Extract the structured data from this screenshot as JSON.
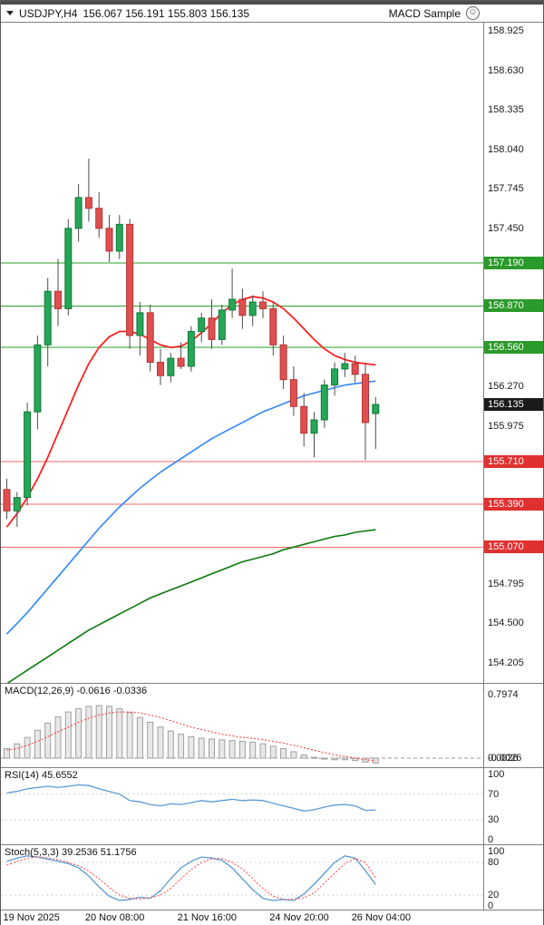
{
  "window": {
    "symbol": "USDJPY,H4",
    "ohlc": "156.067 156.191 155.803 156.135",
    "expert": "MACD Sample"
  },
  "panels": {
    "macd_label": "MACD(12,26,9) -0.0616 -0.0336",
    "rsi_label": "RSI(14) 45.6552",
    "stoch_label": "Stoch(5,3,3) 39.2536 51.1756"
  },
  "colors": {
    "bull": "#26a657",
    "bull_border": "#117a3a",
    "bear": "#de5050",
    "bear_border": "#b63232",
    "wick": "#4d4d4d",
    "ma_fast": "#ff2020",
    "ma_mid": "#2e86ff",
    "ma_slow": "#0a7a0a",
    "res_line": "#2aa12a",
    "res_label_bg": "#2a9a2a",
    "sup_line": "#f26666",
    "sup_label_bg": "#e03030",
    "price_label_bg": "#1a1a1a",
    "macd_hist_fill": "#e8e8e8",
    "macd_hist_stroke": "#9f9f9f",
    "signal": "#ff3030",
    "rsi_line": "#5b9bd5",
    "stoch_k": "#5b9bd5",
    "stoch_d": "#ff4040"
  },
  "chart_data": {
    "type": "candlestick+indicators",
    "main": {
      "type": "candlestick",
      "title": "USDJPY H4",
      "price_range": [
        154.056,
        158.986
      ],
      "x_offset": 6.5,
      "x_step": 11.3,
      "body_w": 7,
      "axis_ticks": [
        "158.925",
        "158.630",
        "158.335",
        "158.040",
        "157.745",
        "157.450",
        "156.270",
        "155.975",
        "154.795",
        "154.500",
        "154.205"
      ],
      "levels": [
        {
          "price": 157.19,
          "kind": "resistance"
        },
        {
          "price": 156.87,
          "kind": "resistance"
        },
        {
          "price": 156.56,
          "kind": "resistance"
        },
        {
          "price": 155.71,
          "kind": "support"
        },
        {
          "price": 155.39,
          "kind": "support"
        },
        {
          "price": 155.07,
          "kind": "support"
        }
      ],
      "last_price": 156.135,
      "time_ticks": [
        {
          "i": 0,
          "t": "19 Nov 2025"
        },
        {
          "i": 8,
          "t": "20 Nov 08:00"
        },
        {
          "i": 17,
          "t": "21 Nov 16:00"
        },
        {
          "i": 26,
          "t": "24 Nov 20:00"
        },
        {
          "i": 34,
          "t": "26 Nov 04:00"
        }
      ],
      "candles": [
        [
          155.5,
          155.58,
          155.28,
          155.34
        ],
        [
          155.34,
          155.48,
          155.22,
          155.44
        ],
        [
          155.44,
          156.15,
          155.38,
          156.08
        ],
        [
          156.08,
          156.65,
          155.95,
          156.58
        ],
        [
          156.58,
          157.08,
          156.42,
          156.98
        ],
        [
          156.98,
          157.22,
          156.72,
          156.85
        ],
        [
          156.85,
          157.52,
          156.8,
          157.45
        ],
        [
          157.45,
          157.78,
          157.35,
          157.68
        ],
        [
          157.68,
          157.97,
          157.5,
          157.6
        ],
        [
          157.6,
          157.72,
          157.38,
          157.45
        ],
        [
          157.45,
          157.55,
          157.2,
          157.28
        ],
        [
          157.28,
          157.55,
          157.22,
          157.48
        ],
        [
          157.48,
          157.52,
          156.55,
          156.65
        ],
        [
          156.65,
          156.9,
          156.5,
          156.82
        ],
        [
          156.82,
          156.88,
          156.38,
          156.45
        ],
        [
          156.45,
          156.55,
          156.28,
          156.35
        ],
        [
          156.35,
          156.52,
          156.3,
          156.48
        ],
        [
          156.48,
          156.6,
          156.4,
          156.42
        ],
        [
          156.42,
          156.72,
          156.38,
          156.68
        ],
        [
          156.68,
          156.82,
          156.6,
          156.78
        ],
        [
          156.78,
          156.92,
          156.55,
          156.62
        ],
        [
          156.62,
          156.88,
          156.58,
          156.84
        ],
        [
          156.84,
          157.15,
          156.78,
          156.92
        ],
        [
          156.92,
          157.0,
          156.7,
          156.8
        ],
        [
          156.8,
          156.95,
          156.72,
          156.9
        ],
        [
          156.9,
          156.98,
          156.78,
          156.85
        ],
        [
          156.85,
          156.9,
          156.5,
          156.58
        ],
        [
          156.58,
          156.65,
          156.25,
          156.32
        ],
        [
          156.32,
          156.42,
          156.05,
          156.12
        ],
        [
          156.12,
          156.22,
          155.82,
          155.92
        ],
        [
          155.92,
          156.08,
          155.74,
          156.02
        ],
        [
          156.02,
          156.32,
          155.96,
          156.28
        ],
        [
          156.28,
          156.45,
          156.2,
          156.4
        ],
        [
          156.4,
          156.52,
          156.34,
          156.44
        ],
        [
          156.44,
          156.5,
          156.3,
          156.36
        ],
        [
          156.36,
          156.44,
          155.72,
          156.0
        ],
        [
          156.067,
          156.191,
          155.803,
          156.135
        ]
      ],
      "ma": {
        "fast": [
          155.22,
          155.32,
          155.44,
          155.58,
          155.74,
          155.92,
          156.1,
          156.28,
          156.44,
          156.56,
          156.64,
          156.68,
          156.68,
          156.66,
          156.62,
          156.58,
          156.56,
          156.57,
          156.61,
          156.67,
          156.74,
          156.82,
          156.88,
          156.92,
          156.94,
          156.93,
          156.9,
          156.85,
          156.78,
          156.7,
          156.62,
          156.55,
          156.5,
          156.47,
          156.45,
          156.44,
          156.43
        ],
        "mid": [
          154.42,
          154.5,
          154.58,
          154.67,
          154.76,
          154.85,
          154.94,
          155.03,
          155.12,
          155.21,
          155.29,
          155.37,
          155.44,
          155.51,
          155.57,
          155.63,
          155.68,
          155.73,
          155.78,
          155.83,
          155.88,
          155.92,
          155.96,
          156.0,
          156.04,
          156.08,
          156.11,
          156.14,
          156.17,
          156.2,
          156.22,
          156.24,
          156.26,
          156.28,
          156.29,
          156.3,
          156.31
        ],
        "slow": [
          154.05,
          154.1,
          154.15,
          154.2,
          154.25,
          154.3,
          154.35,
          154.4,
          154.45,
          154.49,
          154.53,
          154.57,
          154.61,
          154.65,
          154.69,
          154.72,
          154.75,
          154.78,
          154.81,
          154.84,
          154.87,
          154.9,
          154.93,
          154.96,
          154.98,
          155.0,
          155.02,
          155.05,
          155.07,
          155.09,
          155.11,
          155.13,
          155.15,
          155.16,
          155.18,
          155.19,
          155.2
        ]
      }
    },
    "macd": {
      "type": "bar",
      "title": "MACD(12,26,9)",
      "values_label": "-0.0616 -0.0336",
      "range": [
        -0.114,
        0.934
      ],
      "axis": [
        {
          "v": 0.7974,
          "t": "0.7974"
        },
        {
          "v": 0.0026,
          "t": "0.0026"
        },
        {
          "v": -0.0026,
          "t": "-0.0026"
        }
      ],
      "histogram": [
        0.12,
        0.18,
        0.26,
        0.35,
        0.44,
        0.52,
        0.58,
        0.62,
        0.65,
        0.66,
        0.65,
        0.62,
        0.57,
        0.51,
        0.45,
        0.39,
        0.34,
        0.3,
        0.27,
        0.25,
        0.24,
        0.23,
        0.22,
        0.21,
        0.2,
        0.18,
        0.15,
        0.12,
        0.08,
        0.04,
        0.01,
        -0.01,
        -0.02,
        -0.02,
        -0.03,
        -0.05,
        -0.0616
      ],
      "signal": [
        0.1,
        0.12,
        0.16,
        0.21,
        0.27,
        0.33,
        0.39,
        0.45,
        0.5,
        0.54,
        0.57,
        0.58,
        0.58,
        0.57,
        0.54,
        0.51,
        0.47,
        0.43,
        0.39,
        0.36,
        0.33,
        0.3,
        0.28,
        0.26,
        0.25,
        0.23,
        0.21,
        0.19,
        0.16,
        0.13,
        0.1,
        0.07,
        0.04,
        0.02,
        0.0,
        -0.02,
        -0.0336
      ]
    },
    "rsi": {
      "type": "line",
      "title": "RSI(14)",
      "value_label": "45.6552",
      "range": [
        -6.9,
        109.7
      ],
      "axis": [
        {
          "v": 100,
          "t": "100"
        },
        {
          "v": 70,
          "t": "70"
        },
        {
          "v": 30,
          "t": "30"
        },
        {
          "v": 0,
          "t": "0"
        }
      ],
      "values": [
        72,
        74,
        78,
        80,
        82,
        80,
        82,
        84,
        83,
        78,
        74,
        70,
        60,
        58,
        54,
        52,
        55,
        54,
        57,
        60,
        58,
        60,
        62,
        60,
        61,
        60,
        56,
        52,
        48,
        44,
        46,
        50,
        53,
        54,
        52,
        45,
        45.7
      ]
    },
    "stoch": {
      "type": "line",
      "title": "Stoch(5,3,3)",
      "values_label": "39.2536 51.1756",
      "range": [
        -6.6,
        111.7
      ],
      "axis": [
        {
          "v": 100,
          "t": "100"
        },
        {
          "v": 80,
          "t": "80"
        },
        {
          "v": 20,
          "t": "20"
        },
        {
          "v": 0,
          "t": "0"
        }
      ],
      "k": [
        82,
        88,
        92,
        90,
        86,
        82,
        78,
        70,
        55,
        35,
        18,
        10,
        12,
        16,
        14,
        28,
        50,
        70,
        82,
        90,
        88,
        84,
        70,
        50,
        30,
        14,
        10,
        12,
        10,
        22,
        40,
        60,
        80,
        92,
        88,
        65,
        39.25
      ],
      "d": [
        75,
        82,
        88,
        90,
        88,
        85,
        80,
        74,
        64,
        50,
        34,
        20,
        14,
        13,
        15,
        20,
        32,
        50,
        67,
        80,
        87,
        87,
        80,
        68,
        50,
        32,
        18,
        12,
        12,
        15,
        24,
        42,
        60,
        78,
        87,
        80,
        51.18
      ]
    }
  }
}
